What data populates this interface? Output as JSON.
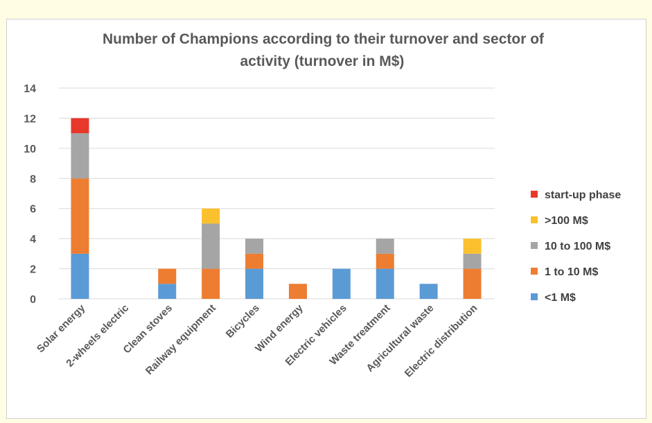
{
  "chart_data": {
    "type": "bar",
    "stacked": true,
    "title": "Number of Champions according to  their turnover and sector of activity (turnover in M$)",
    "title_lines": [
      "Number of Champions according to  their turnover and sector of",
      "activity (turnover in M$)"
    ],
    "categories": [
      "Solar energy",
      "2-wheels electric",
      "Clean stoves",
      "Railway equipment",
      "Bicycles",
      "Wind energy",
      "Electric vehicles",
      "Waste treatment",
      "Agricultural waste",
      "Electric distribution"
    ],
    "series": [
      {
        "name": "<1 M$",
        "color": "#5b9bd5",
        "values": [
          3,
          0,
          1,
          0,
          2,
          0,
          2,
          2,
          1,
          0
        ]
      },
      {
        "name": "1 to 10 M$",
        "color": "#ed7d31",
        "values": [
          5,
          0,
          1,
          2,
          1,
          1,
          0,
          1,
          0,
          2
        ]
      },
      {
        "name": "10 to 100 M$",
        "color": "#a5a5a5",
        "values": [
          3,
          0,
          0,
          3,
          1,
          0,
          0,
          1,
          0,
          1
        ]
      },
      {
        "name": ">100 M$",
        "color": "#fbc02d",
        "values": [
          0,
          0,
          0,
          1,
          0,
          0,
          0,
          0,
          0,
          1
        ]
      },
      {
        "name": "start-up phase",
        "color": "#e8372b",
        "values": [
          1,
          0,
          0,
          0,
          0,
          0,
          0,
          0,
          0,
          0
        ]
      }
    ],
    "legend_order": [
      "start-up phase",
      ">100 M$",
      "10 to 100 M$",
      "1 to 10 M$",
      "<1 M$"
    ],
    "legend_position": "right",
    "ylim": [
      0,
      14
    ],
    "yticks": [
      "0",
      "2",
      "4",
      "6",
      "8",
      "10",
      "12",
      "14"
    ],
    "grid": true,
    "xlabel": "",
    "ylabel": ""
  }
}
